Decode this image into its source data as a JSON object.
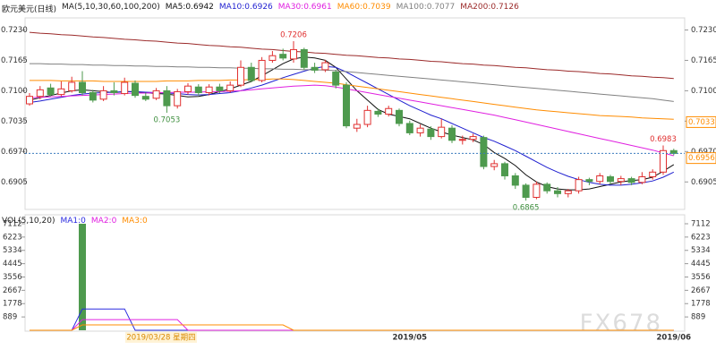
{
  "chart_data": {
    "type": "candlestick",
    "title": "欧元美元(日线)",
    "ma_header": "MA(5,10,30,60,100,200)",
    "cursor_label": "2019/03/28 星期四",
    "watermark": "FX678",
    "categories": [
      null,
      null,
      null,
      null,
      null,
      null,
      null,
      null,
      null,
      null,
      null,
      null,
      null,
      null,
      null,
      null,
      null,
      null,
      null,
      null,
      null,
      null,
      null,
      null,
      null,
      null,
      null,
      null,
      null,
      null,
      null,
      null,
      null,
      null,
      null,
      null,
      "2019/05",
      null,
      null,
      null,
      null,
      null,
      null,
      null,
      null,
      null,
      null,
      null,
      null,
      null,
      null,
      null,
      null,
      null,
      null,
      null,
      null,
      null,
      null,
      null,
      null,
      "2019/06"
    ],
    "open": [
      0.7072,
      0.7088,
      0.7106,
      0.7092,
      0.71,
      0.7118,
      0.7096,
      0.7082,
      0.71,
      0.7094,
      0.7116,
      0.7088,
      0.7084,
      0.71,
      0.7068,
      0.7098,
      0.7108,
      0.7096,
      0.7108,
      0.71,
      0.7112,
      0.715,
      0.7122,
      0.7165,
      0.7178,
      0.7168,
      0.7188,
      0.715,
      0.7145,
      0.714,
      0.7112,
      0.702,
      0.7028,
      0.7056,
      0.705,
      0.7058,
      0.703,
      0.701,
      0.7018,
      0.7002,
      0.702,
      0.6994,
      0.6996,
      0.7,
      0.6938,
      0.6944,
      0.6918,
      0.6898,
      0.6872,
      0.69,
      0.6886,
      0.688,
      0.6886,
      0.691,
      0.6906,
      0.6916,
      0.6906,
      0.6912,
      0.6904,
      0.6916,
      0.6926,
      0.6972
    ],
    "high": [
      0.7095,
      0.711,
      0.7115,
      0.712,
      0.713,
      0.7142,
      0.7102,
      0.711,
      0.7118,
      0.7128,
      0.7122,
      0.7096,
      0.7106,
      0.711,
      0.7104,
      0.7116,
      0.7114,
      0.7114,
      0.7115,
      0.712,
      0.7165,
      0.716,
      0.7172,
      0.7185,
      0.719,
      0.7206,
      0.7192,
      0.716,
      0.7166,
      0.7145,
      0.7118,
      0.704,
      0.7068,
      0.7062,
      0.7068,
      0.7062,
      0.7036,
      0.7028,
      0.7024,
      0.704,
      0.7026,
      0.7004,
      0.7008,
      0.7004,
      0.6952,
      0.6948,
      0.6924,
      0.6902,
      0.6906,
      0.6904,
      0.6894,
      0.689,
      0.6916,
      0.6914,
      0.6924,
      0.692,
      0.6918,
      0.6916,
      0.6926,
      0.6932,
      0.6983,
      0.6976
    ],
    "low": [
      0.7068,
      0.7082,
      0.7088,
      0.7088,
      0.7096,
      0.709,
      0.7075,
      0.7078,
      0.709,
      0.709,
      0.7085,
      0.7078,
      0.708,
      0.7053,
      0.7062,
      0.7092,
      0.709,
      0.709,
      0.7095,
      0.7096,
      0.7108,
      0.7118,
      0.7118,
      0.716,
      0.7165,
      0.716,
      0.7145,
      0.7138,
      0.714,
      0.7105,
      0.702,
      0.7012,
      0.7022,
      0.7044,
      0.7045,
      0.7024,
      0.7005,
      0.7002,
      0.6995,
      0.6998,
      0.6988,
      0.6985,
      0.699,
      0.6932,
      0.693,
      0.691,
      0.689,
      0.6865,
      0.6868,
      0.688,
      0.6872,
      0.6872,
      0.688,
      0.6898,
      0.69,
      0.69,
      0.6898,
      0.6898,
      0.69,
      0.691,
      0.692,
      0.6962
    ],
    "close": [
      0.7088,
      0.7102,
      0.7092,
      0.7104,
      0.7118,
      0.7096,
      0.708,
      0.71,
      0.7096,
      0.7118,
      0.709,
      0.7082,
      0.71,
      0.7068,
      0.7098,
      0.711,
      0.7096,
      0.7108,
      0.71,
      0.7112,
      0.715,
      0.7122,
      0.7165,
      0.7175,
      0.717,
      0.7188,
      0.715,
      0.7144,
      0.716,
      0.7112,
      0.7025,
      0.7028,
      0.7058,
      0.705,
      0.7062,
      0.703,
      0.701,
      0.702,
      0.7002,
      0.7022,
      0.6994,
      0.6996,
      0.7002,
      0.6938,
      0.6944,
      0.6918,
      0.6898,
      0.6872,
      0.69,
      0.6886,
      0.688,
      0.6886,
      0.691,
      0.6906,
      0.6918,
      0.6906,
      0.6912,
      0.6904,
      0.6916,
      0.6926,
      0.6972,
      0.6966
    ],
    "up_color": "#e03030",
    "down_color": "#4e9a4e",
    "ylim": [
      0.685,
      0.7252
    ],
    "yticks": [
      {
        "value": 0.723,
        "label": "0.7230"
      },
      {
        "value": 0.7165,
        "label": "0.7165"
      },
      {
        "value": 0.71,
        "label": "0.7100"
      },
      {
        "value": 0.7035,
        "label": "0.7035"
      },
      {
        "value": 0.697,
        "label": "0.6970"
      },
      {
        "value": 0.6905,
        "label": "0.6905"
      }
    ],
    "series": [
      {
        "name": "MA5:0.6942",
        "color": "#111111",
        "values": [
          0.708,
          0.7085,
          0.709,
          0.7095,
          0.71,
          0.7102,
          0.71,
          0.7098,
          0.7096,
          0.7098,
          0.7098,
          0.7096,
          0.7094,
          0.7093,
          0.709,
          0.7087,
          0.7088,
          0.7092,
          0.7098,
          0.7104,
          0.7112,
          0.712,
          0.7132,
          0.7145,
          0.7158,
          0.7168,
          0.7172,
          0.717,
          0.7165,
          0.715,
          0.7125,
          0.71,
          0.708,
          0.706,
          0.705,
          0.7045,
          0.704,
          0.703,
          0.702,
          0.7012,
          0.7005,
          0.7,
          0.6995,
          0.6985,
          0.6968,
          0.6955,
          0.694,
          0.692,
          0.6905,
          0.6895,
          0.689,
          0.6888,
          0.6888,
          0.689,
          0.6895,
          0.69,
          0.6905,
          0.6908,
          0.691,
          0.6915,
          0.6928,
          0.6942
        ]
      },
      {
        "name": "MA10:0.6926",
        "color": "#1f1fd0",
        "values": [
          0.7075,
          0.7078,
          0.7082,
          0.7086,
          0.709,
          0.7093,
          0.7095,
          0.7096,
          0.7097,
          0.7098,
          0.7098,
          0.7097,
          0.7096,
          0.7095,
          0.7094,
          0.7092,
          0.7091,
          0.7092,
          0.7094,
          0.7096,
          0.71,
          0.7106,
          0.7112,
          0.712,
          0.7128,
          0.7135,
          0.7142,
          0.7148,
          0.7152,
          0.715,
          0.714,
          0.7128,
          0.7116,
          0.7104,
          0.7092,
          0.708,
          0.7068,
          0.7058,
          0.7048,
          0.704,
          0.703,
          0.702,
          0.701,
          0.7,
          0.6992,
          0.6982,
          0.6972,
          0.696,
          0.6948,
          0.6936,
          0.6926,
          0.6917,
          0.691,
          0.6904,
          0.69,
          0.6898,
          0.6898,
          0.69,
          0.6903,
          0.6907,
          0.6915,
          0.6926
        ]
      },
      {
        "name": "MA30:0.6961",
        "color": "#e020e0",
        "values": [
          0.7085,
          0.7086,
          0.7087,
          0.7088,
          0.7089,
          0.709,
          0.7091,
          0.7092,
          0.7093,
          0.7094,
          0.7095,
          0.7095,
          0.7096,
          0.7096,
          0.7097,
          0.7097,
          0.7097,
          0.7098,
          0.7098,
          0.7099,
          0.71,
          0.7102,
          0.7104,
          0.7106,
          0.7108,
          0.711,
          0.7111,
          0.7112,
          0.7111,
          0.7108,
          0.7104,
          0.71,
          0.7096,
          0.7092,
          0.7088,
          0.7084,
          0.708,
          0.7076,
          0.7072,
          0.7068,
          0.7064,
          0.706,
          0.7056,
          0.7052,
          0.7048,
          0.7043,
          0.7038,
          0.7033,
          0.7028,
          0.7023,
          0.7018,
          0.7013,
          0.7008,
          0.7003,
          0.6998,
          0.6993,
          0.6988,
          0.6983,
          0.6978,
          0.6973,
          0.6967,
          0.6961
        ]
      },
      {
        "name": "MA60:0.7039",
        "color": "#ff8c00",
        "values": [
          0.7122,
          0.7122,
          0.7122,
          0.7121,
          0.7121,
          0.7121,
          0.7121,
          0.712,
          0.712,
          0.712,
          0.712,
          0.712,
          0.712,
          0.7121,
          0.7121,
          0.7121,
          0.7122,
          0.7122,
          0.7122,
          0.7123,
          0.7123,
          0.7124,
          0.7124,
          0.7125,
          0.7125,
          0.7124,
          0.7122,
          0.712,
          0.7118,
          0.7116,
          0.7113,
          0.711,
          0.7107,
          0.7104,
          0.7101,
          0.7098,
          0.7095,
          0.7092,
          0.7089,
          0.7086,
          0.7083,
          0.708,
          0.7077,
          0.7074,
          0.7071,
          0.7068,
          0.7065,
          0.7062,
          0.7059,
          0.7057,
          0.7055,
          0.7053,
          0.7051,
          0.7049,
          0.7047,
          0.7046,
          0.7045,
          0.7044,
          0.7042,
          0.7041,
          0.704,
          0.7039
        ]
      },
      {
        "name": "MA100:0.7077",
        "color": "#808080",
        "values": [
          0.7158,
          0.7158,
          0.7157,
          0.7157,
          0.7156,
          0.7156,
          0.7155,
          0.7155,
          0.7154,
          0.7154,
          0.7153,
          0.7153,
          0.7152,
          0.7152,
          0.7151,
          0.7151,
          0.715,
          0.715,
          0.7149,
          0.7149,
          0.7148,
          0.7148,
          0.7147,
          0.7147,
          0.7146,
          0.7146,
          0.7145,
          0.7145,
          0.7144,
          0.7143,
          0.7141,
          0.7139,
          0.7137,
          0.7135,
          0.7133,
          0.7131,
          0.7129,
          0.7127,
          0.7125,
          0.7123,
          0.7121,
          0.7119,
          0.7117,
          0.7115,
          0.7113,
          0.7111,
          0.7109,
          0.7107,
          0.7105,
          0.7103,
          0.7101,
          0.7099,
          0.7097,
          0.7095,
          0.7093,
          0.7091,
          0.7089,
          0.7087,
          0.7085,
          0.7083,
          0.708,
          0.7077
        ]
      },
      {
        "name": "MA200:0.7126",
        "color": "#9b2a2a",
        "values": [
          0.7225,
          0.7223,
          0.7222,
          0.722,
          0.7219,
          0.7217,
          0.7215,
          0.7214,
          0.7212,
          0.721,
          0.7209,
          0.7207,
          0.7206,
          0.7204,
          0.7202,
          0.7201,
          0.7199,
          0.7197,
          0.7196,
          0.7194,
          0.7193,
          0.7191,
          0.7189,
          0.7188,
          0.7186,
          0.7184,
          0.7183,
          0.7181,
          0.718,
          0.7178,
          0.7176,
          0.7175,
          0.7173,
          0.7171,
          0.717,
          0.7168,
          0.7167,
          0.7165,
          0.7163,
          0.7162,
          0.716,
          0.7158,
          0.7157,
          0.7155,
          0.7154,
          0.7152,
          0.715,
          0.7149,
          0.7147,
          0.7145,
          0.7144,
          0.7142,
          0.7141,
          0.7139,
          0.7137,
          0.7136,
          0.7134,
          0.7132,
          0.7131,
          0.7129,
          0.7128,
          0.7126
        ]
      }
    ],
    "annotations": [
      {
        "value": 0.7206,
        "color": "#e03030"
      },
      {
        "value": 0.7053,
        "color": "#3f8f3f"
      },
      {
        "value": 0.6865,
        "color": "#3f8f3f"
      },
      {
        "value": 0.6983,
        "color": "#e03030"
      }
    ],
    "right_markers": [
      {
        "value": 0.7033,
        "color": "#ff8c00"
      },
      {
        "value": 0.6956,
        "color": "#ff8c00"
      }
    ],
    "volume": {
      "title": "VOL(5,10,20)",
      "values": [
        0,
        0,
        0,
        0,
        0,
        7112,
        0,
        0,
        0,
        0,
        0,
        0,
        0,
        0,
        0,
        0,
        0,
        0,
        0,
        0,
        0,
        0,
        0,
        0,
        0,
        0,
        0,
        0,
        0,
        0,
        0,
        0,
        0,
        0,
        0,
        0,
        0,
        0,
        0,
        0,
        0,
        0,
        0,
        0,
        0,
        0,
        0,
        0,
        0,
        0,
        0,
        0,
        0,
        0,
        0,
        0,
        0,
        0,
        0,
        0,
        0,
        0
      ],
      "ylim": [
        0,
        7470
      ],
      "yticks": [
        889,
        1778,
        2667,
        3556,
        4445,
        5334,
        6223,
        7112
      ],
      "series": [
        {
          "name": "MA1:0",
          "color": "#2a2ae0",
          "values": [
            0,
            0,
            0,
            0,
            0,
            1422,
            1422,
            1422,
            1422,
            1422,
            0,
            0,
            0,
            0,
            0,
            0,
            0,
            0,
            0,
            0,
            0,
            0,
            0,
            0,
            0,
            0,
            0,
            0,
            0,
            0,
            0,
            0,
            0,
            0,
            0,
            0,
            0,
            0,
            0,
            0,
            0,
            0,
            0,
            0,
            0,
            0,
            0,
            0,
            0,
            0,
            0,
            0,
            0,
            0,
            0,
            0,
            0,
            0,
            0,
            0,
            0,
            0
          ]
        },
        {
          "name": "MA2:0",
          "color": "#e020e0",
          "values": [
            0,
            0,
            0,
            0,
            0,
            711,
            711,
            711,
            711,
            711,
            711,
            711,
            711,
            711,
            711,
            0,
            0,
            0,
            0,
            0,
            0,
            0,
            0,
            0,
            0,
            0,
            0,
            0,
            0,
            0,
            0,
            0,
            0,
            0,
            0,
            0,
            0,
            0,
            0,
            0,
            0,
            0,
            0,
            0,
            0,
            0,
            0,
            0,
            0,
            0,
            0,
            0,
            0,
            0,
            0,
            0,
            0,
            0,
            0,
            0,
            0,
            0
          ]
        },
        {
          "name": "MA3:0",
          "color": "#ff8c00",
          "values": [
            0,
            0,
            0,
            0,
            0,
            356,
            356,
            356,
            356,
            356,
            356,
            356,
            356,
            356,
            356,
            356,
            356,
            356,
            356,
            356,
            356,
            356,
            356,
            356,
            356,
            0,
            0,
            0,
            0,
            0,
            0,
            0,
            0,
            0,
            0,
            0,
            0,
            0,
            0,
            0,
            0,
            0,
            0,
            0,
            0,
            0,
            0,
            0,
            0,
            0,
            0,
            0,
            0,
            0,
            0,
            0,
            0,
            0,
            0,
            0,
            0,
            0
          ]
        }
      ]
    }
  }
}
